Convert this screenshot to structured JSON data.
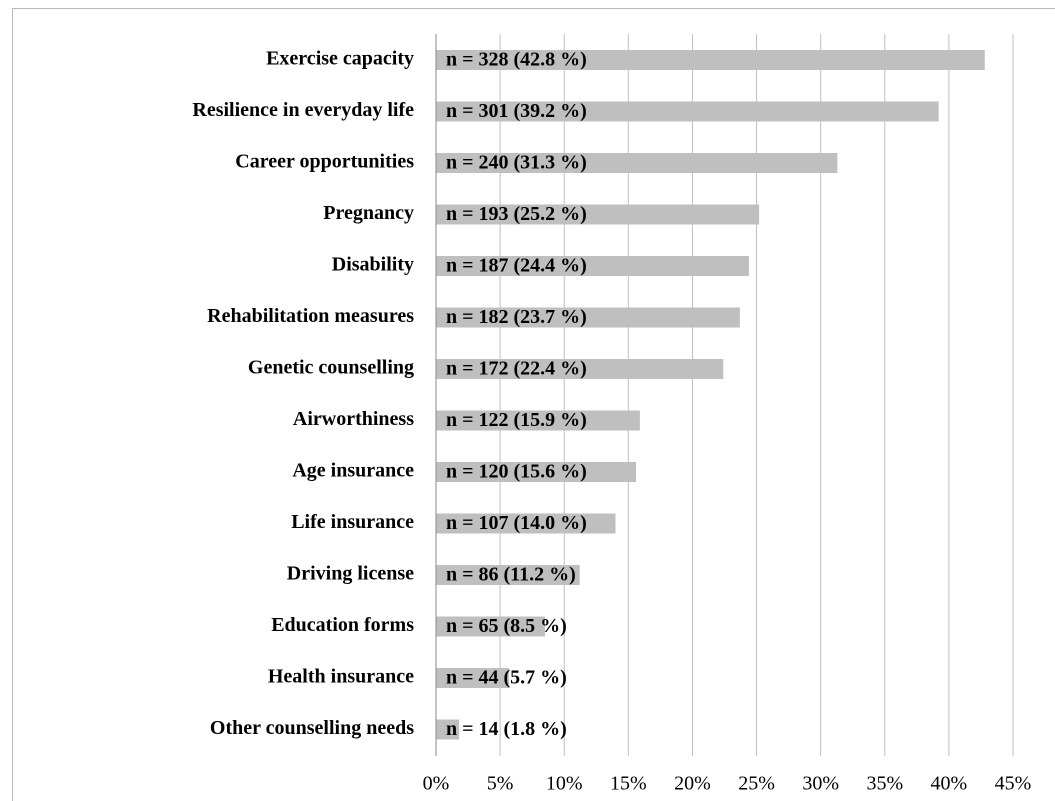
{
  "chart_data": {
    "type": "bar",
    "orientation": "horizontal",
    "categories": [
      "Exercise capacity",
      "Resilience in everyday life",
      "Career opportunities",
      "Pregnancy",
      "Disability",
      "Rehabilitation measures",
      "Genetic counselling",
      "Airworthiness",
      "Age insurance",
      "Life insurance",
      "Driving license",
      "Education forms",
      "Health insurance",
      "Other counselling needs"
    ],
    "values": [
      42.8,
      39.2,
      31.3,
      25.2,
      24.4,
      23.7,
      22.4,
      15.9,
      15.6,
      14.0,
      11.2,
      8.5,
      5.7,
      1.8
    ],
    "value_labels": [
      "n = 328 (42.8 %)",
      "n = 301 (39.2 %)",
      "n = 240 (31.3 %)",
      "n = 193 (25.2 %)",
      "n = 187 (24.4 %)",
      "n = 182 (23.7 %)",
      "n = 172 (22.4 %)",
      "n = 122 (15.9 %)",
      "n = 120 (15.6 %)",
      "n = 107 (14.0 %)",
      "n = 86 (11.2 %)",
      "n = 65 (8.5 %)",
      "n = 44 (5.7 %)",
      "n = 14 (1.8 %)"
    ],
    "color": "#bfbfbf",
    "xlim": [
      0,
      45
    ],
    "xticks": [
      {
        "value": 0,
        "label": "0%"
      },
      {
        "value": 5,
        "label": "5%"
      },
      {
        "value": 10,
        "label": "10%"
      },
      {
        "value": 15,
        "label": "15%"
      },
      {
        "value": 20,
        "label": "20%"
      },
      {
        "value": 25,
        "label": "25%"
      },
      {
        "value": 30,
        "label": "30%"
      },
      {
        "value": 35,
        "label": "35%"
      },
      {
        "value": 40,
        "label": "40%"
      },
      {
        "value": 45,
        "label": "45%"
      }
    ],
    "grid": true
  }
}
